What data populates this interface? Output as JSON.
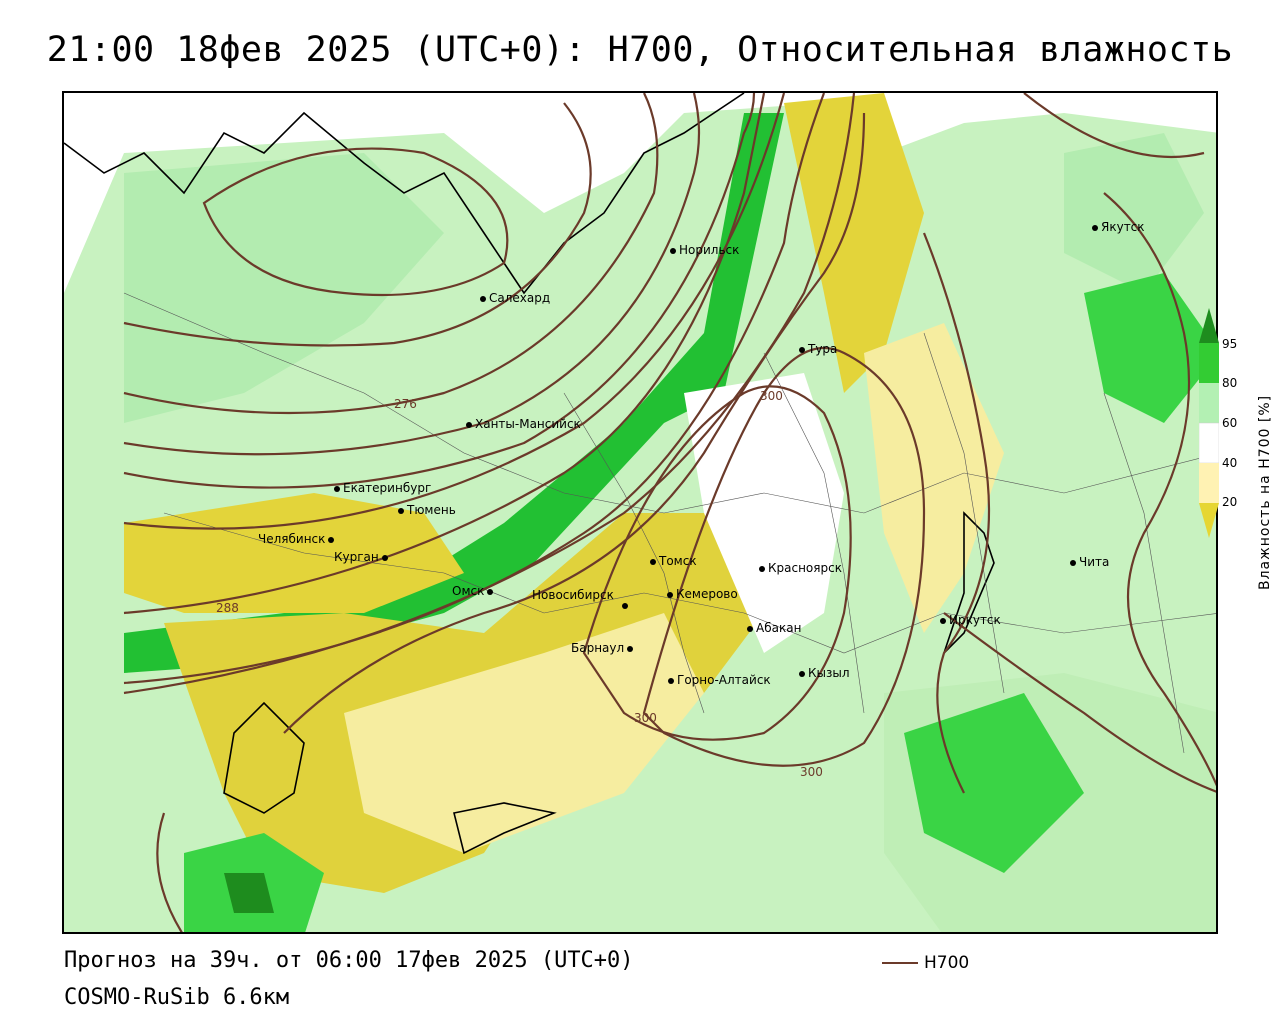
{
  "title": "21:00 18фев 2025 (UTC+0): H700, Относительная влажность",
  "forecast_text": "Прогноз на 39ч. от 06:00 17фев 2025 (UTC+0)",
  "model_text": "COSMO-RuSib 6.6км",
  "legend": {
    "line_label": "H700",
    "line_color": "#6b3a2a"
  },
  "colorbar": {
    "title": "Влажность на H700 [%]",
    "ticks": [
      "95",
      "80",
      "60",
      "40",
      "20"
    ],
    "colors": [
      "#1e8c1e",
      "#33cc33",
      "#b3f0b3",
      "#ffffff",
      "#fff2b3",
      "#e6d633"
    ]
  },
  "cities": [
    {
      "name": "Якутск"
    },
    {
      "name": "Норильск"
    },
    {
      "name": "Салехард"
    },
    {
      "name": "Тура"
    },
    {
      "name": "Ханты-Мансийск"
    },
    {
      "name": "Екатеринбург"
    },
    {
      "name": "Тюмень"
    },
    {
      "name": "Челябинск"
    },
    {
      "name": "Курган"
    },
    {
      "name": "Омск"
    },
    {
      "name": "Томск"
    },
    {
      "name": "Новосибирск"
    },
    {
      "name": "Кемерово"
    },
    {
      "name": "Красноярск"
    },
    {
      "name": "Абакан"
    },
    {
      "name": "Барнаул"
    },
    {
      "name": "Кызыл"
    },
    {
      "name": "Горно-Алтайск"
    },
    {
      "name": "Иркутск"
    },
    {
      "name": "Чита"
    }
  ],
  "contour_labels": [
    "276",
    "288",
    "300",
    "300",
    "300"
  ]
}
